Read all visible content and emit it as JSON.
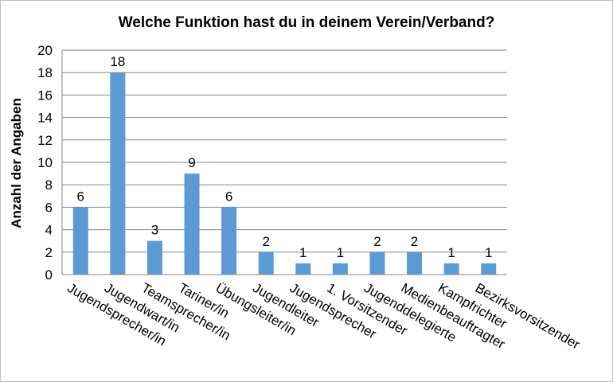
{
  "chart_data": {
    "type": "bar",
    "title": "Welche Funktion hast du in deinem Verein/Verband?",
    "xlabel": "",
    "ylabel": "Anzahl der Angaben",
    "ylim": [
      0,
      20
    ],
    "yticks": [
      0,
      2,
      4,
      6,
      8,
      10,
      12,
      14,
      16,
      18,
      20
    ],
    "grid": true,
    "legend": "none",
    "bar_color": "#5b9bd5",
    "categories": [
      "Jugendsprecher/in",
      "Jugendwart/in",
      "Teamsprecher/in",
      "Tariner/in",
      "Übungsleiter/in",
      "Jugendleiter",
      "Jugendsprecher",
      "1. Vorsitzender",
      "Jugenddelegierte",
      "Medienbeauftragter",
      "Kampfrichter",
      "Bezirksvorsitzender"
    ],
    "values": [
      6,
      18,
      3,
      9,
      6,
      2,
      1,
      1,
      2,
      2,
      1,
      1
    ]
  }
}
